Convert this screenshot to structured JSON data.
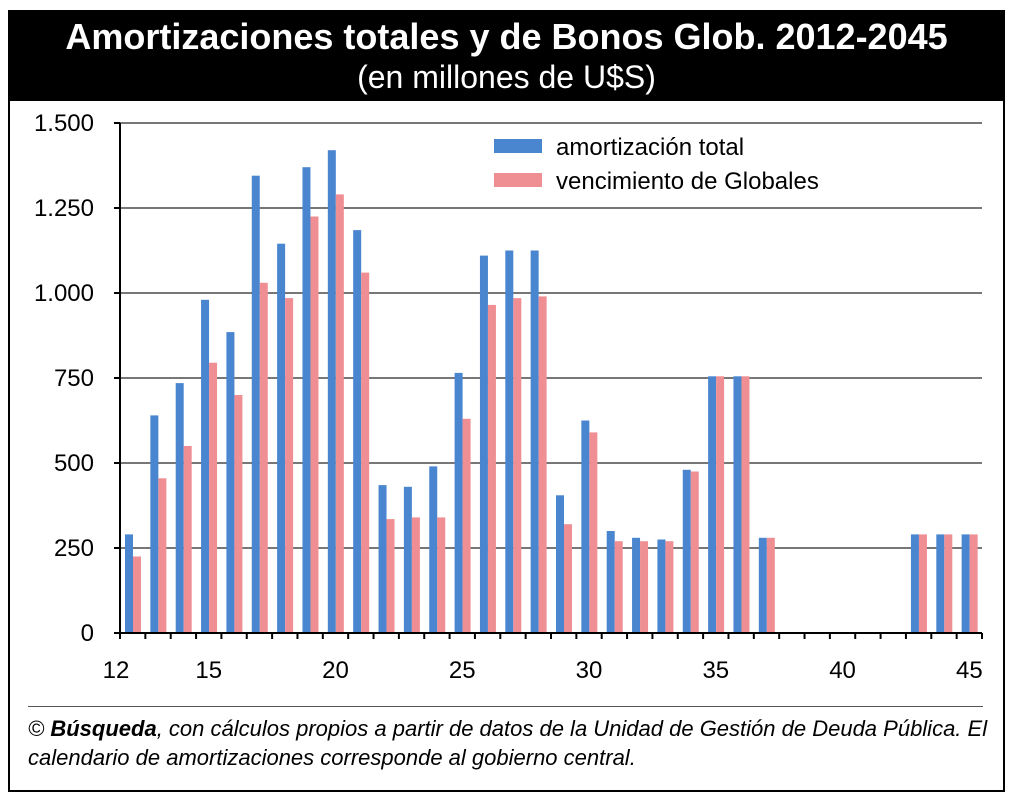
{
  "header": {
    "title": "Amortizaciones totales y de Bonos Glob. 2012-2045",
    "subtitle": "(en millones de U$S)"
  },
  "source": {
    "copyright": "©",
    "outlet": "Búsqueda",
    "text": ", con cálculos propios a partir de datos de la Unidad de Gestión de Deuda Pública. El calendario de amortizaciones corresponde al gobierno central."
  },
  "colors": {
    "series_total": "#4a86cf",
    "series_globales": "#ef8f94",
    "grid": "#777777",
    "axis": "#000000"
  },
  "chart_data": {
    "type": "bar",
    "title": "Amortizaciones totales y de Bonos Glob. 2012-2045",
    "subtitle": "(en millones de U$S)",
    "xlabel": "",
    "ylabel": "",
    "categories": [
      12,
      13,
      14,
      15,
      16,
      17,
      18,
      19,
      20,
      21,
      22,
      23,
      24,
      25,
      26,
      27,
      28,
      29,
      30,
      31,
      32,
      33,
      34,
      35,
      36,
      37,
      38,
      39,
      40,
      41,
      42,
      43,
      44,
      45
    ],
    "x_tick_labels": [
      "12",
      "15",
      "20",
      "25",
      "30",
      "35",
      "40",
      "45"
    ],
    "x_tick_values": [
      12,
      15,
      20,
      25,
      30,
      35,
      40,
      45
    ],
    "y_tick_labels": [
      "0",
      "250",
      "500",
      "750",
      "1.000",
      "1.250",
      "1.500"
    ],
    "y_tick_values": [
      0,
      250,
      500,
      750,
      1000,
      1250,
      1500
    ],
    "ylim": [
      0,
      1500
    ],
    "grid": true,
    "legend_position": "top-right",
    "series": [
      {
        "name": "amortización total",
        "color": "#4a86cf",
        "values": [
          290,
          640,
          735,
          980,
          885,
          1345,
          1145,
          1370,
          1420,
          1185,
          435,
          430,
          490,
          765,
          1110,
          1125,
          1125,
          405,
          625,
          300,
          280,
          275,
          480,
          755,
          755,
          280,
          0,
          0,
          0,
          0,
          0,
          290,
          290,
          290
        ]
      },
      {
        "name": "vencimiento de Globales",
        "color": "#ef8f94",
        "values": [
          225,
          455,
          550,
          795,
          700,
          1030,
          985,
          1225,
          1290,
          1060,
          335,
          340,
          340,
          630,
          965,
          985,
          990,
          320,
          590,
          270,
          270,
          270,
          475,
          755,
          755,
          280,
          0,
          0,
          0,
          0,
          0,
          290,
          290,
          290
        ]
      }
    ]
  }
}
